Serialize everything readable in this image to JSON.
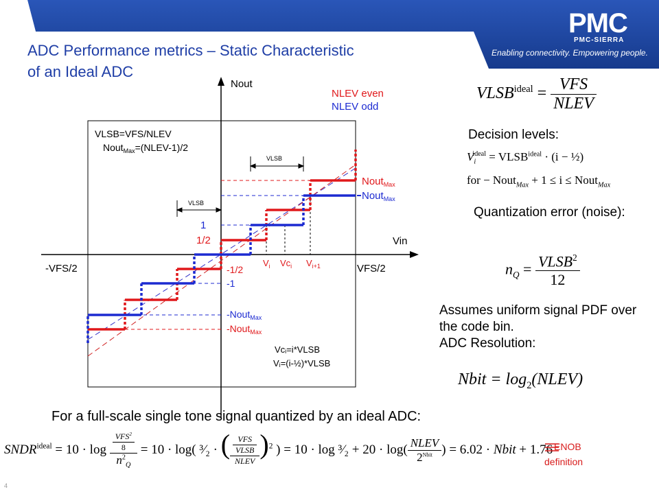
{
  "brand": {
    "logo_text": "PMC",
    "logo_subtext": "PMC-SIERRA",
    "tagline": "Enabling connectivity. Empowering people."
  },
  "title_line1": "ADC Performance metrics – Static Characteristic",
  "title_line2": "of an Ideal ADC",
  "plot": {
    "y_axis_label": "Nout",
    "x_axis_label": "Vin",
    "x_min_label": "-VFS/2",
    "x_max_label": "VFS/2",
    "legend_even": "NLEV even",
    "legend_odd": "NLEV odd",
    "def_line1": "VLSB=VFS/NLEV",
    "def_line2_pre": "Nout",
    "def_line2_sub": "Max",
    "def_line2_post": "=(NLEV-1)/2",
    "vlsb_label": "VLSB",
    "tick_1": "1",
    "tick_half": "1/2",
    "tick_neg_half": "-1/2",
    "tick_neg1": "-1",
    "nout": "Nout",
    "neg_nout": "-Nout",
    "max_sub": "Max",
    "v_i": "V",
    "v_i_sub": "i",
    "vc_i": "Vc",
    "vc_i_sub": "i",
    "v_i1_sub": "i+1",
    "note1": "Vcᵢ=i*VLSB",
    "note2": "Vᵢ=(i-½)*VLSB"
  },
  "right": {
    "decision_levels": "Decision levels:",
    "quant_error": "Quantization error (noise):",
    "assumes": "Assumes uniform signal PDF over the code bin.",
    "resolution": "ADC Resolution:"
  },
  "formulas": {
    "vlsb_lhs": "VLSB",
    "ideal": "ideal",
    "vfs": "VFS",
    "nlev": "NLEV",
    "decision_1": "= VLSB",
    "decision_1b": "· (i − ½)",
    "decision_2": "for − Nout",
    "decision_2b": "+ 1 ≤ i ≤ Nout",
    "max": "Max",
    "n_q": "n",
    "q_sub": "Q",
    "twelve": "12",
    "nbit": "Nbit = log",
    "nbit_arg": "(NLEV)",
    "sndr": "SNDR"
  },
  "bottom_text": "For a full-scale single tone signal quantized by an ideal ADC:",
  "enob_line1": "ENOB",
  "enob_line2": "definition",
  "page_number": "4",
  "colors": {
    "even_red": "#e0181b",
    "odd_blue": "#1c2ad1",
    "title_blue": "#1f3ea6",
    "banner_blue": "#1b3f97"
  }
}
